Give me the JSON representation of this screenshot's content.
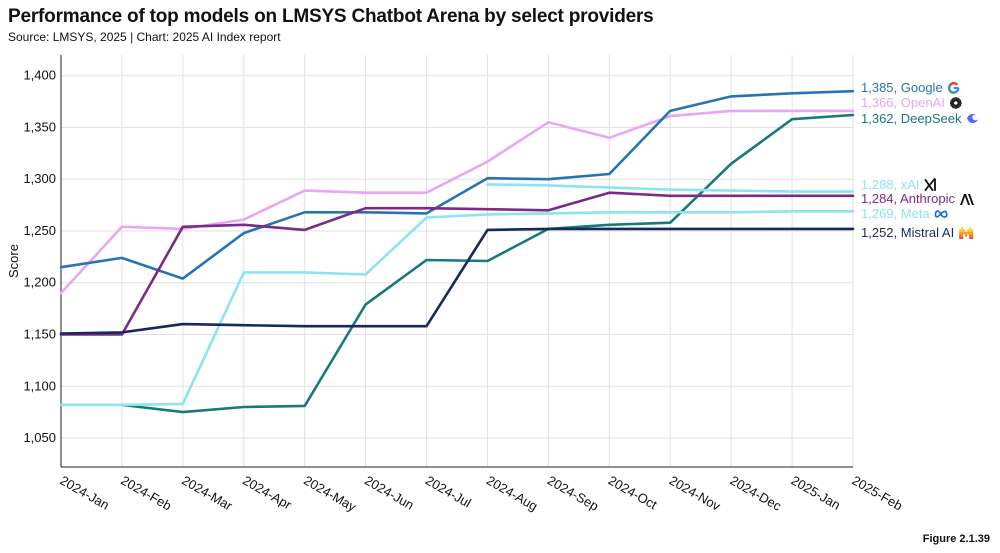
{
  "header": {
    "title": "Performance of top models on LMSYS Chatbot Arena by select providers",
    "subtitle": "Source: LMSYS, 2025 | Chart: 2025 AI Index report"
  },
  "footer": {
    "figure_label": "Figure 2.1.39"
  },
  "chart_data": {
    "type": "line",
    "title": "Performance of top models on LMSYS Chatbot Arena by select providers",
    "xlabel": "",
    "ylabel": "Score",
    "ylim": [
      1022,
      1420
    ],
    "grid": true,
    "y_ticks": [
      1050,
      1100,
      1150,
      1200,
      1250,
      1300,
      1350,
      1400
    ],
    "y_tick_labels": [
      "1,050",
      "1,100",
      "1,150",
      "1,200",
      "1,250",
      "1,300",
      "1,350",
      "1,400"
    ],
    "categories": [
      "2024-Jan",
      "2024-Feb",
      "2024-Mar",
      "2024-Apr",
      "2024-May",
      "2024-Jun",
      "2024-Jul",
      "2024-Aug",
      "2024-Sep",
      "2024-Oct",
      "2024-Nov",
      "2024-Dec",
      "2025-Jan",
      "2025-Feb"
    ],
    "series": [
      {
        "name": "OpenAI",
        "label": "1,366, OpenAI",
        "color": "#e9a6f2",
        "icon": "openai-logo",
        "x": [
          0,
          1,
          2,
          3,
          4,
          5,
          6,
          7,
          8,
          9,
          10,
          11,
          12,
          13
        ],
        "values": [
          1190,
          1254,
          1252,
          1261,
          1289,
          1287,
          1287,
          1317,
          1355,
          1340,
          1361,
          1366,
          1366,
          1366
        ]
      },
      {
        "name": "Google",
        "label": "1,385, Google",
        "color": "#2874b3",
        "icon": "google-logo",
        "x": [
          0,
          1,
          2,
          3,
          4,
          5,
          6,
          7,
          8,
          9,
          10,
          11,
          12,
          13
        ],
        "values": [
          1215,
          1224,
          1204,
          1248,
          1268,
          1268,
          1267,
          1301,
          1300,
          1305,
          1366,
          1380,
          1383,
          1385
        ]
      },
      {
        "name": "DeepSeek",
        "label": "1,362, DeepSeek",
        "color": "#167a7a",
        "icon": "deepseek-logo",
        "x": [
          1,
          2,
          3,
          4,
          5,
          6,
          7,
          8,
          9,
          10,
          11,
          12,
          13
        ],
        "values": [
          1082,
          1075,
          1080,
          1081,
          1179,
          1222,
          1221,
          1252,
          1256,
          1258,
          1315,
          1358,
          1362
        ]
      },
      {
        "name": "xAI",
        "label": "1,288, xAI",
        "color": "#8de3ee",
        "icon": "xai-logo",
        "x": [
          7,
          8,
          9,
          10,
          11,
          12,
          13
        ],
        "values": [
          1295,
          1294,
          1292,
          1290,
          1289,
          1288,
          1288
        ]
      },
      {
        "name": "Meta",
        "label": "1,269, Meta",
        "color": "#8de3ee",
        "icon": "meta-logo",
        "x": [
          0,
          1,
          2,
          3,
          4,
          5,
          6,
          7,
          8,
          9,
          10,
          11,
          12,
          13
        ],
        "values": [
          1082,
          1082,
          1083,
          1210,
          1210,
          1208,
          1263,
          1266,
          1267,
          1268,
          1268,
          1268,
          1269,
          1269
        ]
      },
      {
        "name": "Anthropic",
        "label": "1,284, Anthropic",
        "color": "#7b2a87",
        "icon": "anthropic-logo",
        "x": [
          0,
          1,
          2,
          3,
          4,
          5,
          6,
          7,
          8,
          9,
          10,
          11,
          12,
          13
        ],
        "values": [
          1150,
          1150,
          1254,
          1256,
          1251,
          1272,
          1272,
          1271,
          1270,
          1287,
          1284,
          1284,
          1284,
          1284
        ]
      },
      {
        "name": "Mistral AI",
        "label": "1,252, Mistral AI",
        "color": "#16285e",
        "icon": "mistral-logo",
        "x": [
          0,
          1,
          2,
          3,
          4,
          5,
          6,
          7,
          8,
          9,
          10,
          11,
          12,
          13
        ],
        "values": [
          1151,
          1152,
          1160,
          1159,
          1158,
          1158,
          1158,
          1251,
          1252,
          1252,
          1252,
          1252,
          1252,
          1252
        ]
      }
    ]
  }
}
